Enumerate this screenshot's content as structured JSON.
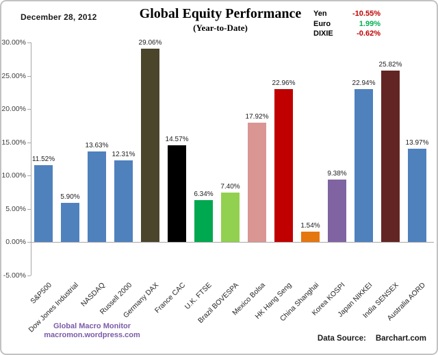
{
  "header": {
    "date": "December 28, 2012",
    "title": "Global Equity Performance",
    "subtitle": "(Year-to-Date)"
  },
  "legend": {
    "items": [
      {
        "label": "Yen",
        "value": "-10.55%",
        "color": "#c00000"
      },
      {
        "label": "Euro",
        "value": "1.99%",
        "color": "#00b050"
      },
      {
        "label": "DIXIE",
        "value": "-0.62%",
        "color": "#c00000"
      }
    ]
  },
  "chart_data": {
    "type": "bar",
    "title": "Global Equity Performance",
    "subtitle": "(Year-to-Date)",
    "categories": [
      "S&P500",
      "Dow Jones Industrial",
      "NASDAQ",
      "Russell 2000",
      "Germany DAX",
      "France CAC",
      "U.K. FTSE",
      "Brazil BOVESPA",
      "Mexico Bolsa",
      "HK Hang Seng",
      "China Shanghai",
      "Korea KOSPI",
      "Japan NIKKEI",
      "India SENSEX",
      "Australia AORD"
    ],
    "values": [
      11.52,
      5.9,
      13.63,
      12.31,
      29.06,
      14.57,
      6.34,
      7.4,
      17.92,
      22.96,
      1.54,
      9.38,
      22.94,
      25.82,
      13.97
    ],
    "bar_colors": [
      "#4f81bd",
      "#4f81bd",
      "#4f81bd",
      "#4f81bd",
      "#4a452b",
      "#000000",
      "#00a84f",
      "#92d050",
      "#d99693",
      "#c00000",
      "#e5770f",
      "#8064a2",
      "#4f81bd",
      "#632523",
      "#4f81bd"
    ],
    "value_label_suffix": "%",
    "xlabel": "",
    "ylabel": "",
    "ylim": [
      -5,
      30
    ],
    "y_tick_step": 5,
    "y_tick_format": "percent_2dp",
    "grid": false,
    "legend_position": "top-right"
  },
  "footer": {
    "attribution_line1": "Global Macro Monitor",
    "attribution_line2": "macromon.wordpress.com",
    "source_label": "Data Source:",
    "source_value": "Barchart.com"
  }
}
